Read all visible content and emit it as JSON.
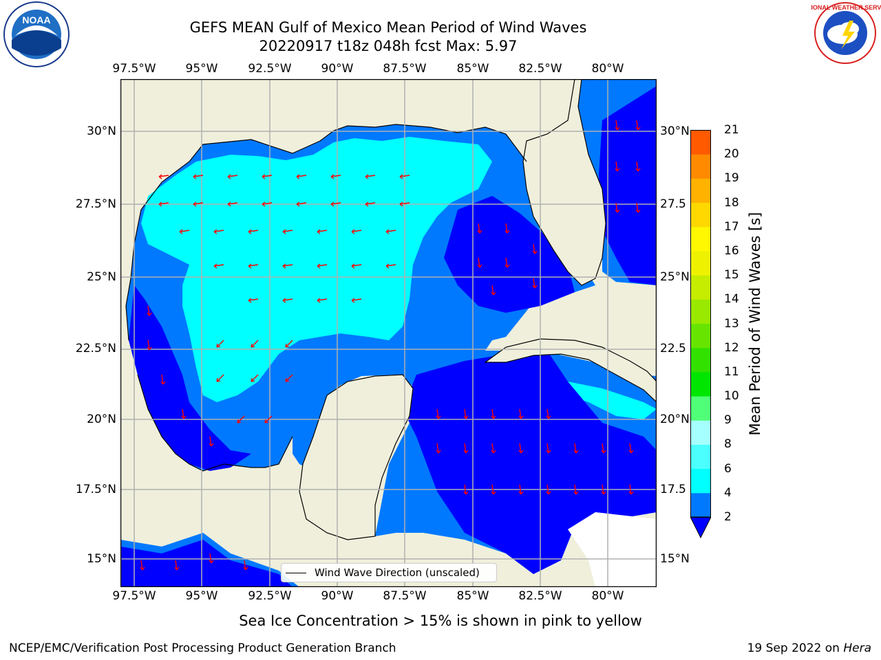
{
  "title": {
    "line1": "GEFS MEAN Gulf of Mexico Mean Period of Wind Waves",
    "line2": "20220917 t18z 048h fcst   Max: 5.97"
  },
  "map": {
    "lon_range": [
      -98.0,
      -78.2
    ],
    "lat_range": [
      14.0,
      31.8
    ],
    "lon_ticks": [
      "97.5°W",
      "95°W",
      "92.5°W",
      "90°W",
      "87.5°W",
      "85°W",
      "82.5°W",
      "80°W"
    ],
    "lon_tick_values": [
      -97.5,
      -95,
      -92.5,
      -90,
      -87.5,
      -85,
      -82.5,
      -80
    ],
    "lat_ticks_left": [
      "30°N",
      "27.5°N",
      "25°N",
      "22.5°N",
      "20°N",
      "17.5°N",
      "15°N"
    ],
    "lat_ticks_right": [
      "30°N",
      "27.5",
      "25°N",
      "22.5",
      "20°N",
      "17.5",
      "15°N"
    ],
    "lat_tick_values": [
      30,
      27.5,
      25,
      22.5,
      20,
      17.5,
      15
    ],
    "land_color": "#efefdc",
    "water_colors": {
      "2-4": "#0079ff",
      "4-6": "#00ffff",
      "under-2": "#0000ff"
    },
    "arrow_color": "#ff0000"
  },
  "legend": {
    "label": "Wind Wave Direction (unscaled)"
  },
  "colorbar": {
    "label": "Mean Period of Wind Waves [s]",
    "ticks": [
      "2",
      "4",
      "6",
      "8",
      "9",
      "10",
      "11",
      "12",
      "13",
      "14",
      "15",
      "16",
      "17",
      "18",
      "19",
      "20",
      "21"
    ],
    "colors": [
      "#0079ff",
      "#00ffff",
      "#4bffff",
      "#a6ffff",
      "#50ff78",
      "#00e600",
      "#33e100",
      "#67e500",
      "#9ae900",
      "#c6ec00",
      "#eef200",
      "#fff800",
      "#ffd800",
      "#ffb200",
      "#ff8a00",
      "#ff5a00",
      "#ff2200",
      "#ff0000"
    ],
    "under_color": "#0000ff"
  },
  "footer": {
    "sea_ice": "Sea Ice Concentration > 15% is shown in pink to yellow",
    "left": "NCEP/EMC/Verification Post Processing Product Generation Branch",
    "right_date": "19 Sep 2022 on ",
    "right_host": "Hera"
  },
  "logos": {
    "noaa": "NOAA",
    "nws": "NATIONAL WEATHER SERVICE"
  }
}
